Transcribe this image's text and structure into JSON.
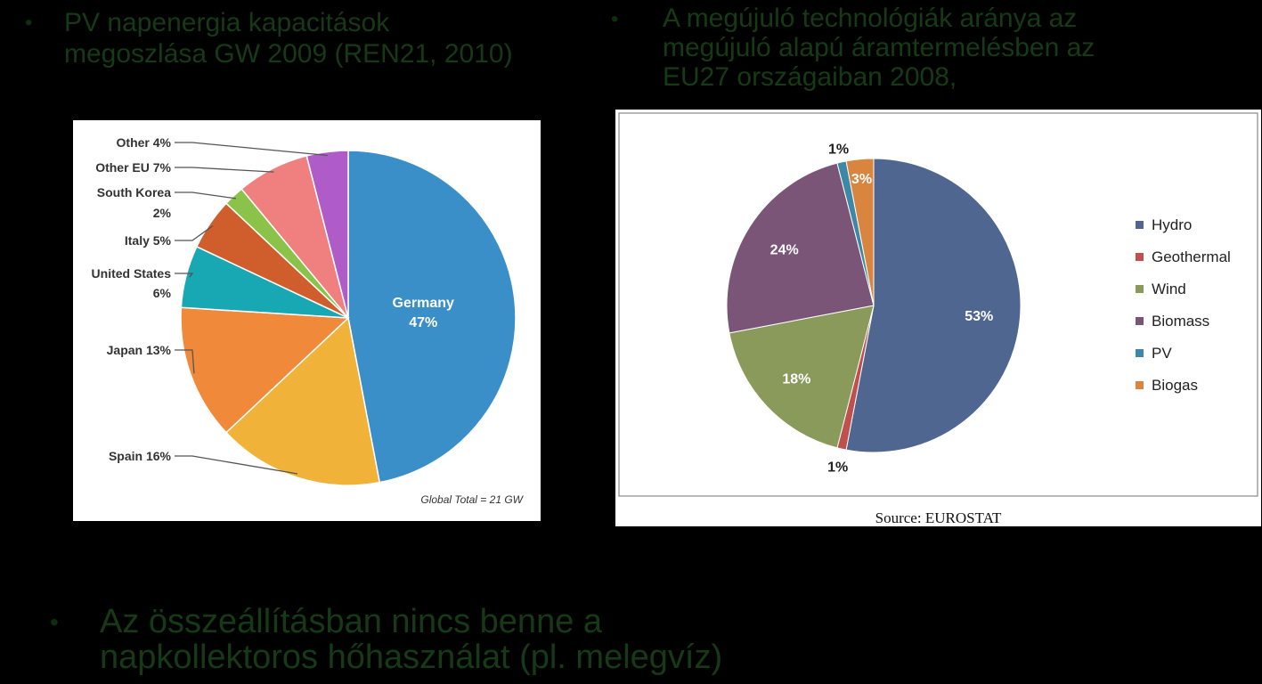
{
  "headings": {
    "left": [
      "PV napenergia kapacitások",
      "megoszlása GW 2009 (REN21, 2010)"
    ],
    "right": [
      "A megújuló technológiák aránya az",
      "megújuló alapú áramtermelésben az",
      "EU27 országaiban 2008,"
    ]
  },
  "bullets": {
    "symbol": "•"
  },
  "footnote": [
    "Az összeállításban nincs benne a",
    "napkollektoros hőhasználat (pl. melegvíz)"
  ],
  "chart_data": [
    {
      "type": "pie",
      "slices": [
        {
          "label": "Germany",
          "value": 47,
          "text": "47%",
          "color": "#3a8fc8"
        },
        {
          "label": "Spain",
          "value": 16,
          "text": "Spain 16%",
          "color": "#f1b23a"
        },
        {
          "label": "Japan",
          "value": 13,
          "text": "Japan 13%",
          "color": "#f08a3a"
        },
        {
          "label": "United States",
          "value": 6,
          "text": "6%",
          "color": "#17a8b4"
        },
        {
          "label": "Italy",
          "value": 5,
          "text": "Italy 5%",
          "color": "#cf5e2c"
        },
        {
          "label": "South Korea",
          "value": 2,
          "text": "2%",
          "color": "#8bc34a"
        },
        {
          "label": "Other EU",
          "value": 7,
          "text": "Other EU 7%",
          "color": "#f08080"
        },
        {
          "label": "Other",
          "value": 4,
          "text": "Other 4%",
          "color": "#b05cc8"
        }
      ],
      "extra_labels": {
        "South Korea": "South Korea",
        "United States": "United States",
        "Germany": "Germany"
      },
      "note": "Global Total = 21 GW"
    },
    {
      "type": "pie",
      "slices": [
        {
          "label": "Hydro",
          "value": 53,
          "text": "53%",
          "color": "#4f6690"
        },
        {
          "label": "Geothermal",
          "value": 1,
          "text": "1%",
          "color": "#c0504d"
        },
        {
          "label": "Wind",
          "value": 18,
          "text": "18%",
          "color": "#8a9a5a"
        },
        {
          "label": "Biomass",
          "value": 24,
          "text": "24%",
          "color": "#7b5577"
        },
        {
          "label": "PV",
          "value": 1,
          "text": "1%",
          "color": "#3c88a6"
        },
        {
          "label": "Biogas",
          "value": 3,
          "text": "3%",
          "color": "#d9843f"
        }
      ],
      "legend": [
        "Hydro",
        "Geothermal",
        "Wind",
        "Biomass",
        "PV",
        "Biogas"
      ],
      "legend_position": "right",
      "source": "Source: EUROSTAT"
    }
  ]
}
